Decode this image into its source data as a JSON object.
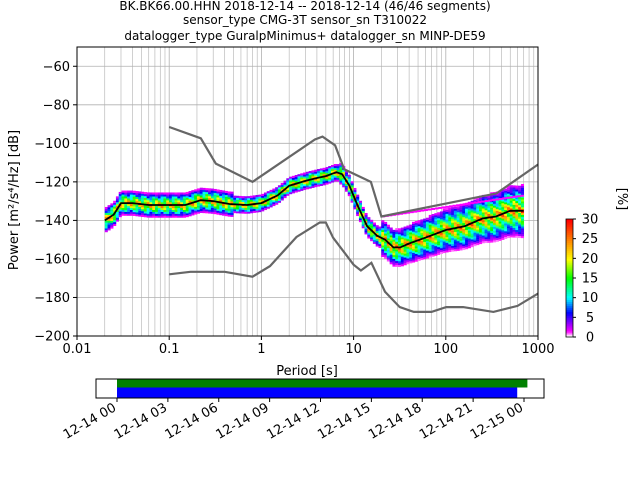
{
  "title": {
    "line1": "BK.BK66.00.HHN   2018-12-14 -- 2018-12-14  (46/46 segments)",
    "line2": "sensor_type CMG-3T sensor_sn T310022",
    "line3": "datalogger_type GuralpMinimus+ datalogger_sn MINP-DE59"
  },
  "colorbar": {
    "label": "[%]",
    "ticks": [
      "0",
      "5",
      "10",
      "15",
      "20",
      "25",
      "30"
    ],
    "range": [
      0,
      30
    ]
  },
  "chart_data": [
    {
      "type": "heatmap",
      "title": "",
      "xlabel": "Period [s]",
      "ylabel": "Power [m²/s⁴/Hz] [dB]",
      "xscale": "log",
      "xlim": [
        0.01,
        1000
      ],
      "ylim": [
        -200,
        -50
      ],
      "x_ticks": [
        "0.01",
        "0.1",
        "1",
        "10",
        "100",
        "1000"
      ],
      "y_ticks": [
        "−60",
        "−80",
        "−100",
        "−120",
        "−140",
        "−160",
        "−180",
        "−200"
      ],
      "grid": true,
      "series": [
        {
          "role": "new-high-noise-model",
          "color": "#666666",
          "points": [
            [
              0.1,
              -91.5
            ],
            [
              0.22,
              -97.4
            ],
            [
              0.32,
              -110.5
            ],
            [
              0.8,
              -120
            ],
            [
              3.8,
              -98
            ],
            [
              4.6,
              -96.5
            ],
            [
              6.3,
              -101
            ],
            [
              7.9,
              -113.5
            ],
            [
              15.4,
              -120
            ],
            [
              20,
              -138
            ],
            [
              354.8,
              -126
            ],
            [
              1000,
              -111
            ]
          ]
        },
        {
          "role": "new-low-noise-model",
          "color": "#666666",
          "points": [
            [
              0.1,
              -168
            ],
            [
              0.17,
              -166.7
            ],
            [
              0.4,
              -166.7
            ],
            [
              0.8,
              -169.2
            ],
            [
              1.24,
              -163.7
            ],
            [
              2.4,
              -148.6
            ],
            [
              4.3,
              -141.1
            ],
            [
              5.0,
              -141.1
            ],
            [
              6.0,
              -149
            ],
            [
              10.0,
              -163
            ],
            [
              12.0,
              -166
            ],
            [
              15.6,
              -162
            ],
            [
              21.9,
              -177
            ],
            [
              31.6,
              -185
            ],
            [
              45,
              -187.5
            ],
            [
              70,
              -187.5
            ],
            [
              101,
              -185
            ],
            [
              154,
              -185
            ],
            [
              328,
              -187.5
            ],
            [
              600,
              -184.4
            ],
            [
              1000,
              -178
            ]
          ]
        },
        {
          "role": "mode",
          "color": "#000000",
          "points": [
            [
              0.02,
              -140
            ],
            [
              0.025,
              -137
            ],
            [
              0.03,
              -131
            ],
            [
              0.04,
              -131
            ],
            [
              0.06,
              -132
            ],
            [
              0.1,
              -132
            ],
            [
              0.15,
              -132
            ],
            [
              0.22,
              -129.5
            ],
            [
              0.3,
              -130
            ],
            [
              0.45,
              -131.5
            ],
            [
              0.7,
              -132
            ],
            [
              1.0,
              -131
            ],
            [
              1.5,
              -127
            ],
            [
              2.0,
              -122
            ],
            [
              3.0,
              -119.5
            ],
            [
              4.0,
              -118
            ],
            [
              5.0,
              -117
            ],
            [
              6.5,
              -115
            ],
            [
              7.5,
              -116
            ],
            [
              9.0,
              -122
            ],
            [
              11.0,
              -132
            ],
            [
              14.0,
              -143
            ],
            [
              18.0,
              -148
            ],
            [
              22.0,
              -150
            ],
            [
              27.0,
              -154
            ],
            [
              32.0,
              -154
            ],
            [
              40.0,
              -152
            ],
            [
              60.0,
              -149
            ],
            [
              100.0,
              -145
            ],
            [
              160.0,
              -143
            ],
            [
              250.0,
              -139
            ],
            [
              350.0,
              -138
            ],
            [
              500.0,
              -135
            ],
            [
              700.0,
              -135
            ]
          ]
        }
      ],
      "density_band": {
        "description_values": "probability density of PSD values around the mode, 0-30 %",
        "x_range": [
          0.02,
          700
        ],
        "spread_db": [
          4,
          16
        ]
      },
      "magenta_high_tail": {
        "x_range": [
          20,
          700
        ],
        "y_values": [
          -138,
          -127
        ]
      }
    },
    {
      "type": "bar",
      "title": "",
      "xlabel": "",
      "ylabel": "",
      "x_ticks": [
        "12-14 00",
        "12-14 03",
        "12-14 06",
        "12-14 09",
        "12-14 12",
        "12-14 15",
        "12-14 18",
        "12-14 21",
        "12-15 00"
      ],
      "series": [
        {
          "color": "#008000",
          "start": "12-14 00",
          "end_hours": 24.2
        },
        {
          "color": "#0000ff",
          "start": "12-14 00",
          "end_hours": 23.6
        }
      ]
    }
  ]
}
